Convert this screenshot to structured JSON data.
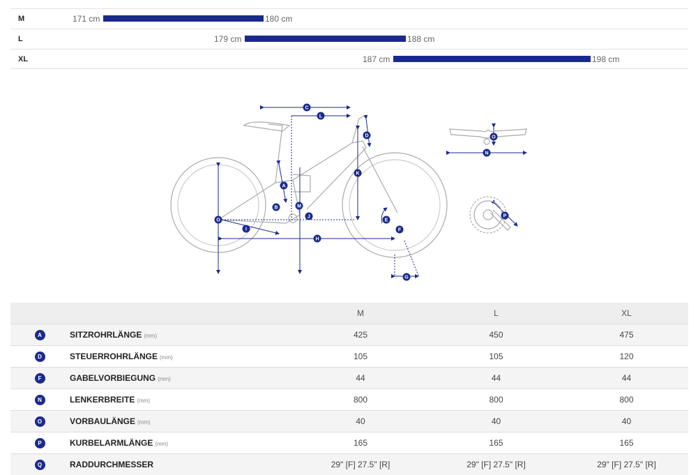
{
  "size_chart": [
    {
      "size": "M",
      "from": "171 cm",
      "to": "180 cm"
    },
    {
      "size": "L",
      "from": "179 cm",
      "to": "188 cm"
    },
    {
      "size": "XL",
      "from": "187 cm",
      "to": "198 cm"
    }
  ],
  "diagram_letters": [
    "A",
    "B",
    "C",
    "D",
    "E",
    "F",
    "G",
    "H",
    "I",
    "J",
    "K",
    "L",
    "M",
    "N",
    "O",
    "P"
  ],
  "table": {
    "headers": [
      "M",
      "L",
      "XL"
    ],
    "rows": [
      {
        "letter": "A",
        "name": "SITZROHRLÄNGE",
        "unit": "(mm)",
        "values": [
          "425",
          "450",
          "475"
        ]
      },
      {
        "letter": "D",
        "name": "STEUERROHRLÄNGE",
        "unit": "(mm)",
        "values": [
          "105",
          "105",
          "120"
        ]
      },
      {
        "letter": "F",
        "name": "GABELVORBIEGUNG",
        "unit": "(mm)",
        "values": [
          "44",
          "44",
          "44"
        ]
      },
      {
        "letter": "N",
        "name": "LENKERBREITE",
        "unit": "(mm)",
        "values": [
          "800",
          "800",
          "800"
        ]
      },
      {
        "letter": "O",
        "name": "VORBAULÄNGE",
        "unit": "(mm)",
        "values": [
          "40",
          "40",
          "40"
        ]
      },
      {
        "letter": "P",
        "name": "KURBELARMLÄNGE",
        "unit": "(mm)",
        "values": [
          "165",
          "165",
          "165"
        ]
      },
      {
        "letter": "Q",
        "name": "RADDURCHMESSER",
        "unit": "",
        "values": [
          "29\" [F] 27.5\" [R]",
          "29\" [F] 27.5\" [R]",
          "29\" [F] 27.5\" [R]"
        ]
      }
    ]
  }
}
